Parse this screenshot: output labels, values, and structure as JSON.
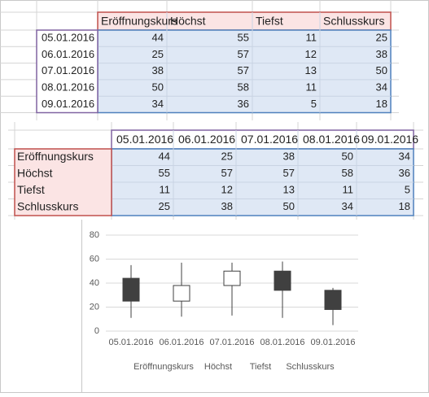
{
  "table1": {
    "header": [
      "Eröffnungskurs",
      "Höchst",
      "Tiefst",
      "Schlusskurs"
    ],
    "rows": [
      {
        "label": "05.01.2016",
        "values": [
          "44",
          "55",
          "11",
          "25"
        ]
      },
      {
        "label": "06.01.2016",
        "values": [
          "25",
          "57",
          "12",
          "38"
        ]
      },
      {
        "label": "07.01.2016",
        "values": [
          "38",
          "57",
          "13",
          "50"
        ]
      },
      {
        "label": "08.01.2016",
        "values": [
          "50",
          "58",
          "11",
          "34"
        ]
      },
      {
        "label": "09.01.2016",
        "values": [
          "34",
          "36",
          "5",
          "18"
        ]
      }
    ]
  },
  "table2": {
    "header": [
      "05.01.2016",
      "06.01.2016",
      "07.01.2016",
      "08.01.2016",
      "09.01.2016"
    ],
    "rows": [
      {
        "label": "Eröffnungskurs",
        "values": [
          "44",
          "25",
          "38",
          "50",
          "34"
        ]
      },
      {
        "label": "Höchst",
        "values": [
          "55",
          "57",
          "57",
          "58",
          "36"
        ]
      },
      {
        "label": "Tiefst",
        "values": [
          "11",
          "12",
          "13",
          "11",
          "5"
        ]
      },
      {
        "label": "Schlusskurs",
        "values": [
          "25",
          "38",
          "50",
          "34",
          "18"
        ]
      }
    ]
  },
  "chart_data": {
    "type": "candlestick",
    "categories": [
      "05.01.2016",
      "06.01.2016",
      "07.01.2016",
      "08.01.2016",
      "09.01.2016"
    ],
    "series": [
      {
        "name": "Eröffnungskurs",
        "values": [
          44,
          25,
          38,
          50,
          34
        ]
      },
      {
        "name": "Höchst",
        "values": [
          55,
          57,
          57,
          58,
          36
        ]
      },
      {
        "name": "Tiefst",
        "values": [
          11,
          12,
          13,
          11,
          5
        ]
      },
      {
        "name": "Schlusskurs",
        "values": [
          25,
          38,
          50,
          34,
          18
        ]
      }
    ],
    "ylim": [
      0,
      80
    ],
    "yticks": [
      0,
      20,
      40,
      60,
      80
    ],
    "grid": true,
    "up_color": "#ffffff",
    "down_color": "#404040"
  }
}
